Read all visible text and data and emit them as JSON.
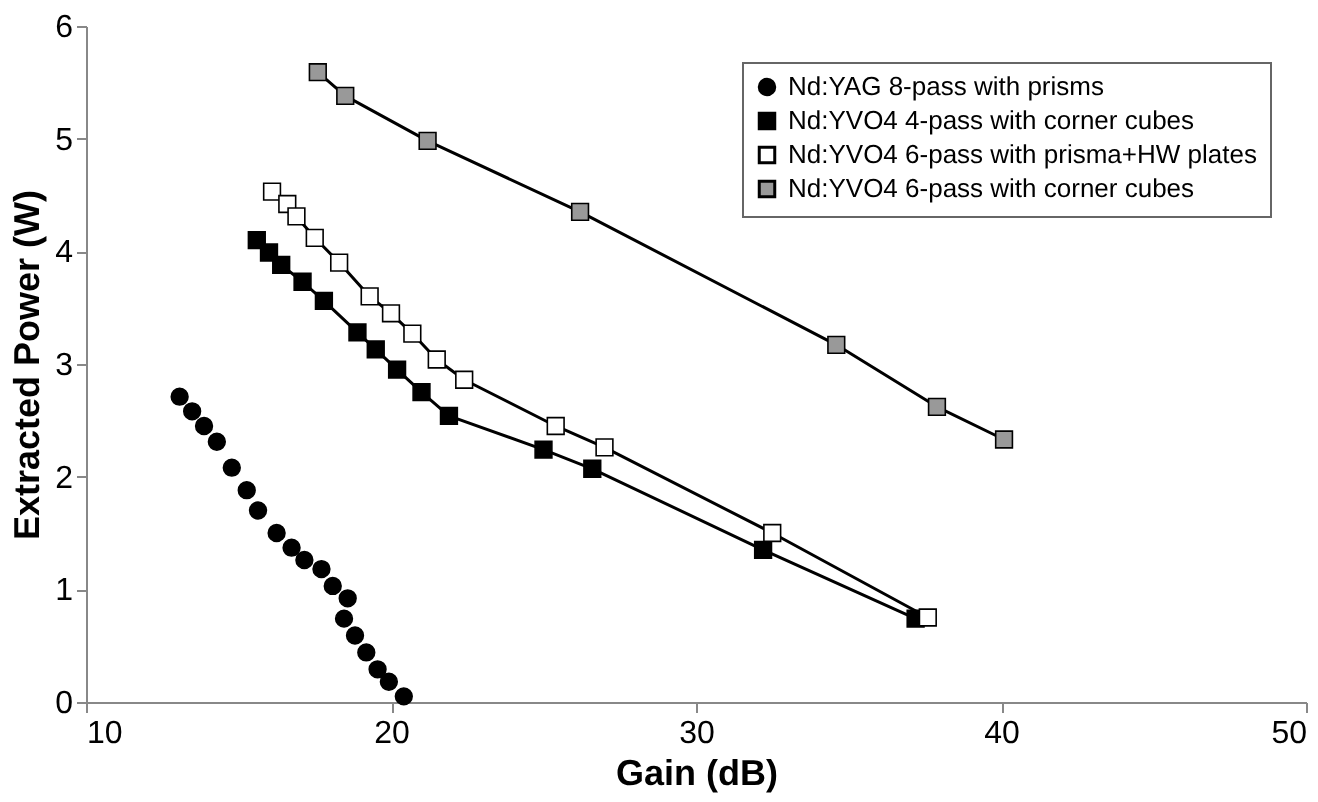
{
  "chart_data": {
    "type": "line",
    "xlabel": "Gain (dB)",
    "ylabel": "Extracted Power (W)",
    "xlim": [
      10,
      50
    ],
    "xticks": [
      10,
      20,
      30,
      40,
      50
    ],
    "ylim": [
      0,
      6
    ],
    "yticks": [
      0,
      1,
      2,
      3,
      4,
      5,
      6
    ],
    "grid": false,
    "legend": "top right",
    "series": [
      {
        "name": "Nd:YAG 8-pass with prisms",
        "type": "scatter",
        "marker": "circle",
        "color": "#000000",
        "x": [
          13.07,
          13.48,
          13.87,
          14.29,
          14.78,
          15.27,
          15.64,
          16.25,
          16.74,
          17.16,
          17.72,
          18.09,
          18.58,
          18.46,
          18.82,
          19.19,
          19.56,
          19.93,
          20.42
        ],
        "values": [
          2.71,
          2.58,
          2.45,
          2.31,
          2.08,
          1.88,
          1.7,
          1.5,
          1.37,
          1.26,
          1.18,
          1.03,
          0.92,
          0.74,
          0.59,
          0.44,
          0.29,
          0.18,
          0.05
        ]
      },
      {
        "name": "Nd:YVO4 4-pass with corner cubes",
        "marker": "square",
        "color": "#000000",
        "x": [
          15.6,
          16.0,
          16.4,
          17.1,
          17.8,
          18.9,
          19.5,
          20.2,
          21.0,
          21.9,
          25.0,
          26.6,
          32.2,
          37.2
        ],
        "values": [
          4.1,
          3.99,
          3.88,
          3.73,
          3.56,
          3.28,
          3.13,
          2.95,
          2.75,
          2.54,
          2.24,
          2.07,
          1.35,
          0.74
        ]
      },
      {
        "name": "Nd:YVO4 6-pass with prisma+HW plates",
        "marker": "square",
        "color": "#ffffff",
        "x": [
          16.1,
          16.6,
          16.9,
          17.5,
          18.3,
          19.3,
          20.0,
          20.7,
          21.5,
          22.4,
          25.4,
          27.0,
          32.5,
          37.6
        ],
        "values": [
          4.53,
          4.42,
          4.31,
          4.12,
          3.9,
          3.6,
          3.45,
          3.27,
          3.04,
          2.86,
          2.45,
          2.26,
          1.5,
          0.75
        ]
      },
      {
        "name": "Nd:YVO4 6-pass with corner cubes",
        "marker": "square",
        "color": "#999999",
        "x": [
          17.6,
          18.5,
          21.2,
          26.2,
          34.6,
          37.9,
          40.1
        ],
        "values": [
          5.59,
          5.38,
          4.98,
          4.35,
          3.17,
          2.62,
          2.33
        ]
      }
    ]
  }
}
